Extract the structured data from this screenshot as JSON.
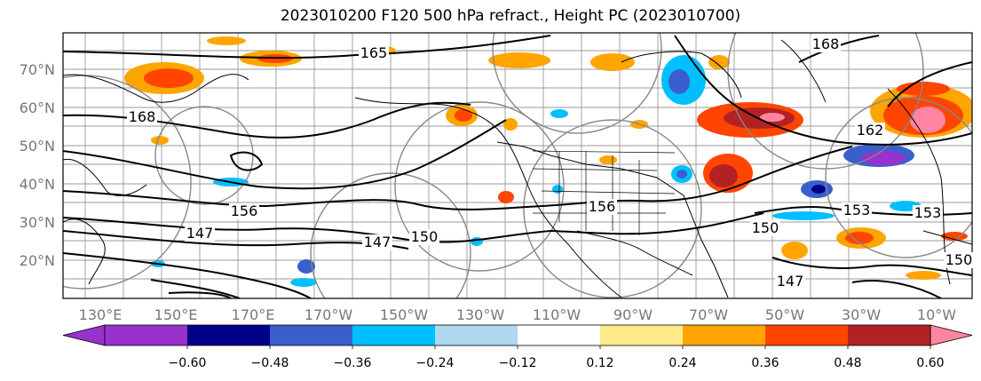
{
  "title": "2023010200 F120 500 hPa refract., Height PC (2023010700)",
  "map": {
    "lat_labels": [
      "70°N",
      "60°N",
      "50°N",
      "40°N",
      "30°N",
      "20°N"
    ],
    "lon_labels": [
      "130°E",
      "150°E",
      "170°E",
      "170°W",
      "150°W",
      "130°W",
      "110°W",
      "90°W",
      "70°W",
      "50°W",
      "30°W",
      "10°W"
    ],
    "contour_labels": [
      "165",
      "168",
      "168",
      "156",
      "147",
      "147",
      "150",
      "156",
      "150",
      "153",
      "162",
      "153",
      "150",
      "147"
    ],
    "gridlines": true,
    "height_contour_color": "#000000",
    "pc_circle_color": "#888888"
  },
  "colorbar": {
    "colors": [
      "#9932CC",
      "#00008B",
      "#3A5FCD",
      "#00BFFF",
      "#ADD8F0",
      "#FFFFFF",
      "#FFEB8C",
      "#FFA500",
      "#FF4500",
      "#B22222",
      "#FF85A2"
    ],
    "tick_labels": [
      "−0.60",
      "−0.48",
      "−0.36",
      "−0.24",
      "−0.12",
      "0.12",
      "0.24",
      "0.36",
      "0.48",
      "0.60"
    ],
    "extend": "both"
  }
}
